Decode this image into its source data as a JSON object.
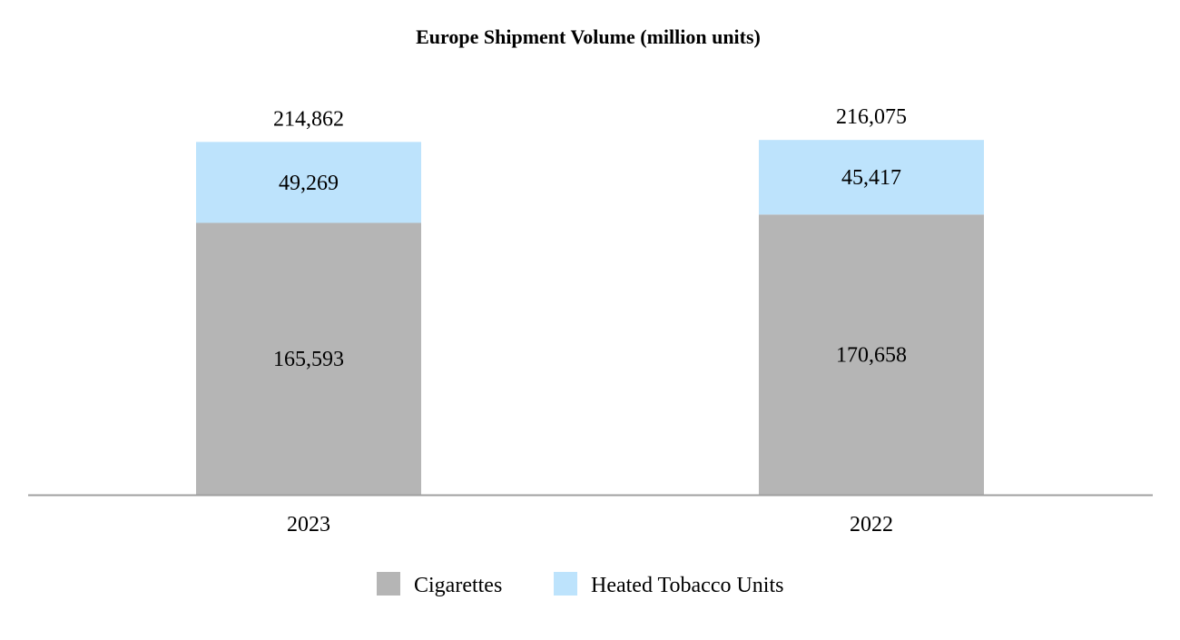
{
  "chart_data": {
    "type": "bar",
    "stacked": true,
    "title": "Europe Shipment Volume (million units)",
    "categories": [
      "2023",
      "2022"
    ],
    "series": [
      {
        "name": "Cigarettes",
        "values": [
          165593,
          170658
        ],
        "labels": [
          "165,593",
          "170,658"
        ],
        "color": "#b5b5b5"
      },
      {
        "name": "Heated Tobacco Units",
        "values": [
          49269,
          45417
        ],
        "labels": [
          "49,269",
          "45,417"
        ],
        "color": "#bde3fc"
      }
    ],
    "totals": [
      214862,
      216075
    ],
    "total_labels": [
      "214,862",
      "216,075"
    ],
    "ylim": [
      0,
      235000
    ],
    "grid": false,
    "axis_color": "#a0a0a0",
    "legend_position": "bottom-center",
    "xlabel": "",
    "ylabel": ""
  }
}
